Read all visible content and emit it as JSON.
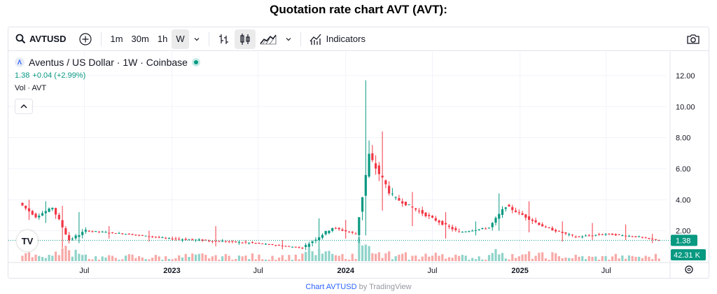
{
  "page": {
    "title": "Quotation rate chart AVT (AVT):"
  },
  "toolbar": {
    "symbol": "AVTUSD",
    "intervals": [
      "1m",
      "30m",
      "1h",
      "W"
    ],
    "active_interval": "W",
    "indicators_label": "Indicators",
    "icons": [
      "search-icon",
      "add-compare-icon",
      "chevron-down-icon",
      "bar-style-icon",
      "candles-icon",
      "area-chart-icon",
      "indicators-icon",
      "camera-icon"
    ]
  },
  "legend": {
    "title": "Aventus / US Dollar · 1W · Coinbase",
    "price": "1.38",
    "change": "+0.04 (+2.99%)",
    "vol_label": "Vol · AVT"
  },
  "price_axis": {
    "ticks": [
      "12.00",
      "10.00",
      "8.00",
      "6.00",
      "4.00",
      "2.00"
    ],
    "last_price_label": "1.38",
    "volume_label": "42.31 K"
  },
  "time_axis": {
    "ticks": [
      "Jul",
      "2023",
      "Jul",
      "2024",
      "Jul",
      "2025",
      "Jul"
    ]
  },
  "footer": {
    "link_text": "Chart AVTUSD",
    "suffix": "by TradingView"
  },
  "colors": {
    "up": "#089981",
    "down": "#f23645",
    "vol_up": "#8fd3c9",
    "vol_down": "#f7a9a7",
    "accent": "#2962ff"
  },
  "chart_data": {
    "type": "candlestick",
    "interval": "1W",
    "y_range": [
      0,
      12.9
    ],
    "y_ticks": [
      12,
      10,
      8,
      6,
      4,
      2
    ],
    "x_ticks": [
      "Jul",
      "2023",
      "Jul",
      "2024",
      "Jul",
      "2025",
      "Jul"
    ],
    "segments": [
      {
        "from": "2022-02-21",
        "to": "2022-03-28",
        "o": 3.8,
        "c": 2.9,
        "h": 4.0,
        "l": 2.7
      },
      {
        "from": "2022-03-28",
        "to": "2022-05-02",
        "o": 2.9,
        "c": 3.5,
        "h": 3.9,
        "l": 2.5
      },
      {
        "from": "2022-05-02",
        "to": "2022-06-06",
        "o": 3.5,
        "c": 1.4,
        "h": 3.6,
        "l": 0.9
      },
      {
        "from": "2022-06-06",
        "to": "2022-07-11",
        "o": 1.4,
        "c": 2.0,
        "h": 3.2,
        "l": 1.2
      },
      {
        "from": "2022-07-11",
        "to": "2022-10-03",
        "o": 2.0,
        "c": 1.8,
        "h": 2.3,
        "l": 1.5
      },
      {
        "from": "2022-10-03",
        "to": "2023-01-02",
        "o": 1.8,
        "c": 1.5,
        "h": 2.0,
        "l": 1.3
      },
      {
        "from": "2023-01-02",
        "to": "2023-07-03",
        "o": 1.5,
        "c": 1.2,
        "h": 2.3,
        "l": 1.0
      },
      {
        "from": "2023-07-03",
        "to": "2023-10-09",
        "o": 1.2,
        "c": 0.9,
        "h": 1.4,
        "l": 0.8
      },
      {
        "from": "2023-10-09",
        "to": "2023-12-11",
        "o": 0.9,
        "c": 2.2,
        "h": 2.8,
        "l": 0.8
      },
      {
        "from": "2023-12-11",
        "to": "2024-01-29",
        "o": 2.2,
        "c": 1.8,
        "h": 2.7,
        "l": 1.5
      },
      {
        "from": "2024-01-29",
        "to": "2024-02-26",
        "o": 1.8,
        "c": 6.8,
        "h": 11.7,
        "l": 1.7
      },
      {
        "from": "2024-02-26",
        "to": "2024-04-15",
        "o": 6.8,
        "c": 4.2,
        "h": 8.4,
        "l": 3.3
      },
      {
        "from": "2024-04-15",
        "to": "2024-07-01",
        "o": 4.2,
        "c": 2.9,
        "h": 4.5,
        "l": 2.3
      },
      {
        "from": "2024-07-01",
        "to": "2024-09-02",
        "o": 2.9,
        "c": 1.9,
        "h": 3.2,
        "l": 1.5
      },
      {
        "from": "2024-09-02",
        "to": "2024-11-04",
        "o": 1.9,
        "c": 2.2,
        "h": 2.6,
        "l": 1.7
      },
      {
        "from": "2024-11-04",
        "to": "2024-12-09",
        "o": 2.2,
        "c": 3.6,
        "h": 4.4,
        "l": 2.0
      },
      {
        "from": "2024-12-09",
        "to": "2025-03-03",
        "o": 3.6,
        "c": 2.2,
        "h": 3.9,
        "l": 1.9
      },
      {
        "from": "2025-03-03",
        "to": "2025-05-05",
        "o": 2.2,
        "c": 1.6,
        "h": 2.6,
        "l": 1.3
      },
      {
        "from": "2025-05-05",
        "to": "2025-07-07",
        "o": 1.6,
        "c": 1.8,
        "h": 2.5,
        "l": 1.4
      },
      {
        "from": "2025-07-07",
        "to": "2025-09-15",
        "o": 1.8,
        "c": 1.6,
        "h": 2.4,
        "l": 1.4
      },
      {
        "from": "2025-09-15",
        "to": "2025-10-27",
        "o": 1.6,
        "c": 1.38,
        "h": 1.8,
        "l": 1.2
      }
    ],
    "last_price": 1.38,
    "last_volume": "42.31 K"
  }
}
